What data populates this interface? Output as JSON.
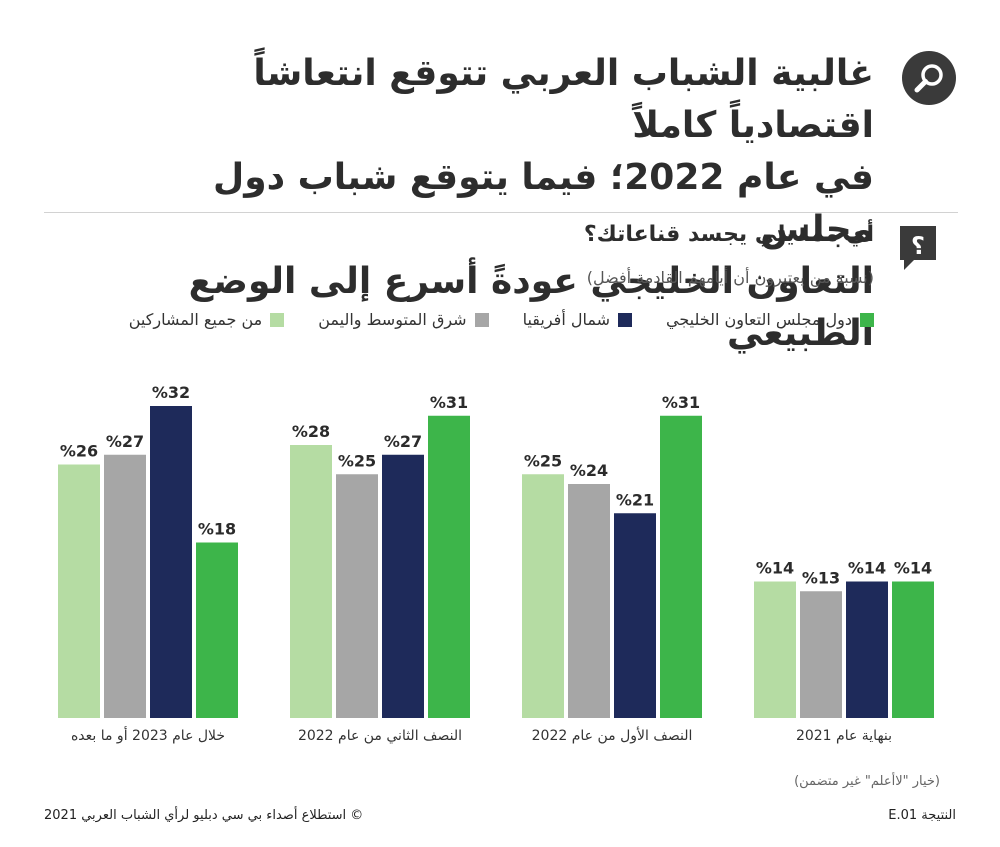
{
  "header": {
    "headline_line1": "غالبية الشباب العربي تتوقع انتعاشاً اقتصادياً كاملاً",
    "headline_line2": "في عام 2022؛ فيما يتوقع شباب دول مجلس",
    "headline_line3": "التعاون الخليجي عودةً أسرع إلى الوضع الطبيعي",
    "search_icon": "search-icon",
    "question_icon": "question-icon"
  },
  "question": "أي مما يلي يجسد قناعاتك؟",
  "subtitle": "(نسبة من يعتبرون أن أيامهم القادمة أفضل)",
  "footnote": "(خيار \"لاأعلم\" غير متضمن)",
  "footer": {
    "source": "© استطلاع أصداء بي سي دبليو لرأي الشباب العربي 2021",
    "code": "النتيجة E.01"
  },
  "colors": {
    "gcc": "#3db54a",
    "north_africa": "#1e2a5a",
    "levant_yemen": "#a6a6a6",
    "all": "#b5dca3",
    "icon_bg": "#3a3a3a"
  },
  "chart_data": {
    "type": "bar",
    "value_format": "%{v}",
    "categories": [
      "بنهاية عام 2021",
      "النصف الأول من عام 2022",
      "النصف الثاني من عام 2022",
      "خلال عام 2023 أو ما بعده"
    ],
    "series": [
      {
        "name": "دول مجلس التعاون الخليجي",
        "color": "#3db54a",
        "values": [
          14,
          31,
          31,
          18
        ]
      },
      {
        "name": "شمال أفريقيا",
        "color": "#1e2a5a",
        "values": [
          14,
          21,
          27,
          32
        ]
      },
      {
        "name": "شرق المتوسط واليمن",
        "color": "#a6a6a6",
        "values": [
          13,
          24,
          25,
          27
        ]
      },
      {
        "name": "من جميع المشاركين",
        "color": "#b5dca3",
        "values": [
          14,
          25,
          28,
          26
        ]
      }
    ],
    "ylim": [
      0,
      32
    ]
  }
}
